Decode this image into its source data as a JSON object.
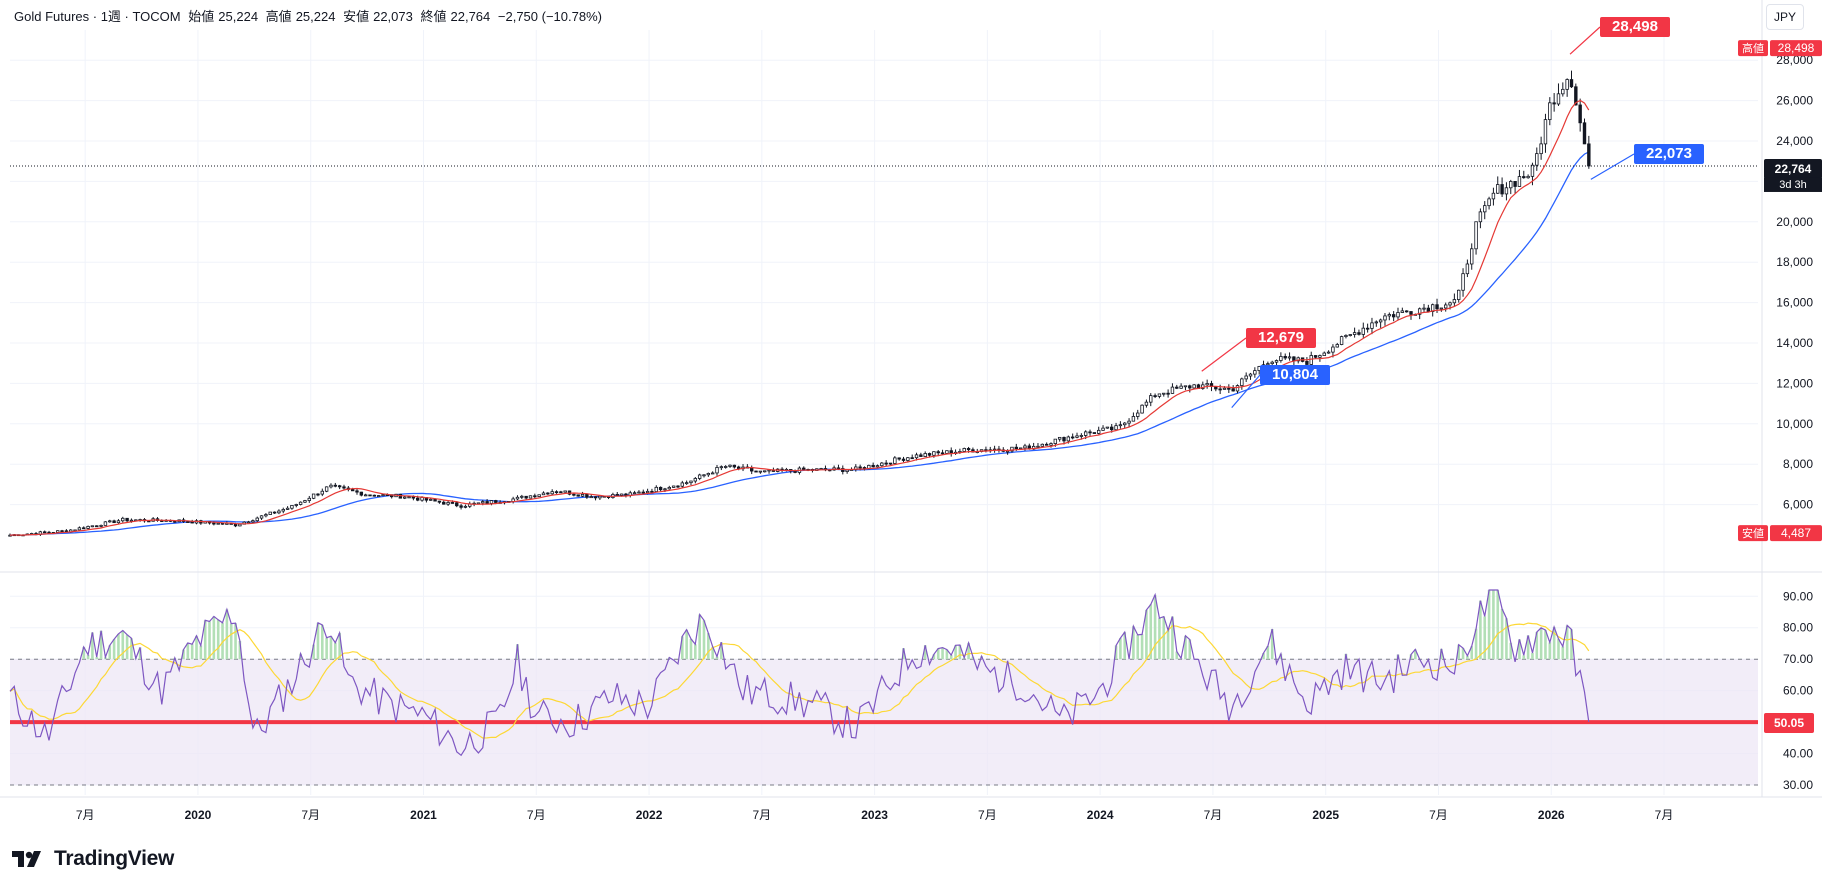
{
  "header": {
    "symbol": "Gold Futures · 1週 · TOCOM",
    "open_label": "始値",
    "open": "25,224",
    "high_label": "高値",
    "high": "25,224",
    "low_label": "安値",
    "low": "22,073",
    "close_label": "終値",
    "close": "22,764",
    "change": "−2,750 (−10.78%)"
  },
  "currency": "JPY",
  "brand": "TradingView",
  "colors": {
    "up": "#ffffff",
    "down": "#131722",
    "ma_fast": "#e53935",
    "ma_slow": "#2962ff",
    "rsi": "#7e57c2",
    "rsi_ma": "#fdd835",
    "high_tag": "#f23645",
    "low_tag": "#2962ff",
    "midline": "#f23645",
    "band": "#ede7f6"
  },
  "chart_data": [
    {
      "type": "candlestick",
      "name": "Gold Futures · 1週 · TOCOM",
      "interval": "1週",
      "ylim": [
        4000,
        29000
      ],
      "y_ticks": [
        "6,000",
        "8,000",
        "10,000",
        "12,000",
        "14,000",
        "16,000",
        "18,000",
        "20,000",
        "22,000",
        "24,000",
        "26,000",
        "28,000"
      ],
      "x_ticks": [
        "7月",
        "2020",
        "7月",
        "2021",
        "7月",
        "2022",
        "7月",
        "2023",
        "7月",
        "2024",
        "7月",
        "2025",
        "7月",
        "2026",
        "7月"
      ],
      "x_range": [
        "2019-03",
        "2026-12"
      ],
      "approx_close": [
        [
          "2019-03",
          4487
        ],
        [
          "2019-06",
          4700
        ],
        [
          "2019-09",
          5250
        ],
        [
          "2019-12",
          5200
        ],
        [
          "2020-03",
          5000
        ],
        [
          "2020-06",
          5900
        ],
        [
          "2020-08",
          6900
        ],
        [
          "2020-10",
          6500
        ],
        [
          "2020-12",
          6400
        ],
        [
          "2021-03",
          5950
        ],
        [
          "2021-06",
          6300
        ],
        [
          "2021-08",
          6700
        ],
        [
          "2021-10",
          6400
        ],
        [
          "2021-12",
          6500
        ],
        [
          "2022-03",
          7100
        ],
        [
          "2022-05",
          7900
        ],
        [
          "2022-07",
          7600
        ],
        [
          "2022-09",
          7700
        ],
        [
          "2022-12",
          7750
        ],
        [
          "2023-03",
          8400
        ],
        [
          "2023-06",
          8700
        ],
        [
          "2023-09",
          8800
        ],
        [
          "2023-12",
          9500
        ],
        [
          "2024-02",
          9800
        ],
        [
          "2024-04",
          11500
        ],
        [
          "2024-06",
          11900
        ],
        [
          "2024-08",
          11700
        ],
        [
          "2024-10",
          13200
        ],
        [
          "2024-12",
          13100
        ],
        [
          "2025-02",
          14200
        ],
        [
          "2025-04",
          15300
        ],
        [
          "2025-06",
          15700
        ],
        [
          "2025-08",
          16100
        ],
        [
          "2025-09",
          19800
        ],
        [
          "2025-10",
          21500
        ],
        [
          "2025-12",
          22500
        ],
        [
          "2026-01",
          26000
        ],
        [
          "2026-02",
          27400
        ],
        [
          "2026-03",
          22764
        ]
      ],
      "last_price": "22,764",
      "countdown": "3d 3h",
      "high_marker": {
        "label": "高値",
        "value": "28,498"
      },
      "low_marker": {
        "label": "安値",
        "value": "4,487"
      },
      "annotations": [
        "28,498",
        "22,073",
        "12,679",
        "10,804"
      ]
    },
    {
      "type": "line",
      "name": "RSI",
      "ylim": [
        30,
        92
      ],
      "y_ticks": [
        "30.00",
        "40.00",
        "50.00",
        "60.00",
        "70.00",
        "80.00",
        "90.00"
      ],
      "bands": [
        30,
        50,
        70
      ],
      "current": "50.05",
      "approx_rsi": [
        [
          "2019-03",
          58
        ],
        [
          "2019-05",
          45
        ],
        [
          "2019-07",
          74
        ],
        [
          "2019-09",
          78
        ],
        [
          "2019-11",
          60
        ],
        [
          "2020-01",
          76
        ],
        [
          "2020-03",
          85
        ],
        [
          "2020-04",
          45
        ],
        [
          "2020-06",
          63
        ],
        [
          "2020-08",
          84
        ],
        [
          "2020-09",
          63
        ],
        [
          "2020-11",
          56
        ],
        [
          "2021-01",
          52
        ],
        [
          "2021-03",
          42
        ],
        [
          "2021-05",
          50
        ],
        [
          "2021-06",
          69
        ],
        [
          "2021-07",
          52
        ],
        [
          "2021-09",
          50
        ],
        [
          "2021-11",
          58
        ],
        [
          "2022-01",
          55
        ],
        [
          "2022-03",
          77
        ],
        [
          "2022-04",
          83
        ],
        [
          "2022-06",
          60
        ],
        [
          "2022-08",
          58
        ],
        [
          "2022-10",
          55
        ],
        [
          "2022-12",
          48
        ],
        [
          "2023-03",
          72
        ],
        [
          "2023-05",
          74
        ],
        [
          "2023-07",
          66
        ],
        [
          "2023-09",
          62
        ],
        [
          "2023-11",
          50
        ],
        [
          "2024-01",
          60
        ],
        [
          "2024-03",
          80
        ],
        [
          "2024-04",
          88
        ],
        [
          "2024-06",
          70
        ],
        [
          "2024-08",
          55
        ],
        [
          "2024-10",
          76
        ],
        [
          "2024-12",
          56
        ],
        [
          "2025-02",
          67
        ],
        [
          "2025-04",
          63
        ],
        [
          "2025-06",
          70
        ],
        [
          "2025-08",
          68
        ],
        [
          "2025-09",
          82
        ],
        [
          "2025-10",
          91
        ],
        [
          "2025-11",
          74
        ],
        [
          "2026-01",
          80
        ],
        [
          "2026-02",
          76
        ],
        [
          "2026-03",
          50
        ]
      ]
    }
  ]
}
